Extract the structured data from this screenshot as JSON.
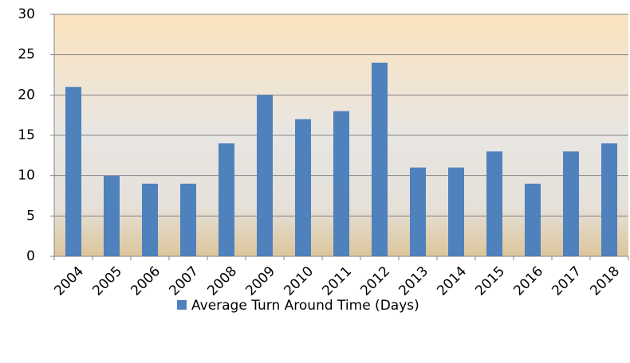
{
  "chart_data": {
    "type": "bar",
    "categories": [
      "2004",
      "2005",
      "2006",
      "2007",
      "2008",
      "2009",
      "2010",
      "2011",
      "2012",
      "2013",
      "2014",
      "2015",
      "2016",
      "2017",
      "2018"
    ],
    "series": [
      {
        "name": "Average Turn Around Time (Days)",
        "color": "#4f81bd",
        "values": [
          21,
          10,
          9,
          9,
          14,
          20,
          17,
          18,
          24,
          11,
          11,
          13,
          9,
          13,
          14
        ]
      }
    ],
    "ylim": [
      0,
      30
    ],
    "yticks": [
      0,
      5,
      10,
      15,
      20,
      25,
      30
    ],
    "grid": true,
    "legend": "bottom"
  }
}
